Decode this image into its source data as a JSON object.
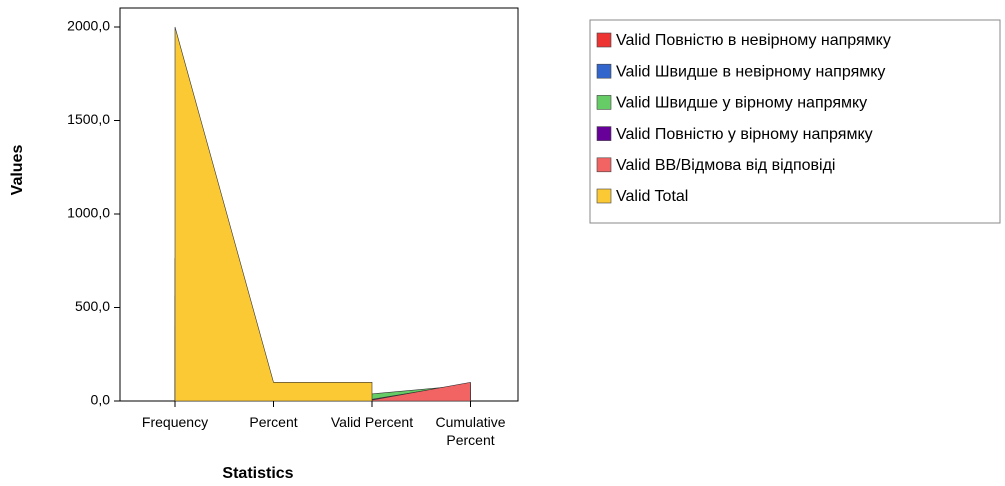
{
  "chart_data": {
    "type": "area",
    "x_label": "Statistics",
    "y_label": "Values",
    "categories": [
      "Frequency",
      "Percent",
      "Valid Percent",
      "Cumulative Percent"
    ],
    "series": [
      {
        "name": "Valid Повністю в невірному напрямку",
        "color": "#ee3333",
        "values": [
          400,
          20,
          20,
          20
        ]
      },
      {
        "name": "Valid Швидше в невірному напрямку",
        "color": "#3366cc",
        "values": [
          560,
          28,
          28,
          48
        ]
      },
      {
        "name": "Valid Швидше у вірному напрямку",
        "color": "#66cc66",
        "values": [
          760,
          38,
          38,
          86
        ]
      },
      {
        "name": "Valid Повністю у вірному напрямку",
        "color": "#660099",
        "values": [
          180,
          9,
          9,
          95
        ]
      },
      {
        "name": "Valid ВВ/Відмова від відповіді",
        "color": "#f26464",
        "values": [
          100,
          5,
          5,
          100
        ]
      },
      {
        "name": "Valid Total",
        "color": "#fbc934",
        "values": [
          2000,
          100,
          100,
          null
        ]
      }
    ],
    "ylim": [
      0,
      2000
    ],
    "yticks": [
      {
        "value": 0,
        "label": "0,0"
      },
      {
        "value": 500,
        "label": "500,0"
      },
      {
        "value": 1000,
        "label": "1000,0"
      },
      {
        "value": 1500,
        "label": "1500,0"
      },
      {
        "value": 2000,
        "label": "2000,0"
      }
    ],
    "legend_position": "right"
  }
}
